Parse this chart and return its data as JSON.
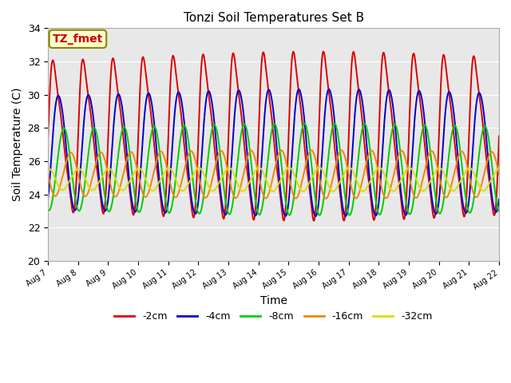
{
  "title": "Tonzi Soil Temperatures Set B",
  "xlabel": "Time",
  "ylabel": "Soil Temperature (C)",
  "ylim": [
    20,
    34
  ],
  "background_color": "#ffffff",
  "plot_bg_color": "#e8e8e8",
  "series": [
    {
      "label": "-2cm",
      "color": "#dd0000",
      "amplitude": 5.5,
      "mean": 27.5,
      "phase_shift": 0.0,
      "sharpness": 3.0
    },
    {
      "label": "-4cm",
      "color": "#0000cc",
      "amplitude": 3.7,
      "mean": 26.5,
      "phase_shift": 0.12,
      "sharpness": 1.5
    },
    {
      "label": "-8cm",
      "color": "#00cc00",
      "amplitude": 2.4,
      "mean": 25.5,
      "phase_shift": 0.28,
      "sharpness": 1.0
    },
    {
      "label": "-16cm",
      "color": "#ee8800",
      "amplitude": 1.2,
      "mean": 25.2,
      "phase_shift": 0.5,
      "sharpness": 0.8
    },
    {
      "label": "-32cm",
      "color": "#dddd00",
      "amplitude": 0.55,
      "mean": 24.9,
      "phase_shift": 0.75,
      "sharpness": 0.5
    }
  ],
  "xtick_labels": [
    "Aug 7",
    "Aug 8",
    "Aug 9",
    "Aug 10",
    "Aug 11",
    "Aug 12",
    "Aug 13",
    "Aug 14",
    "Aug 15",
    "Aug 16",
    "Aug 17",
    "Aug 18",
    "Aug 19",
    "Aug 20",
    "Aug 21",
    "Aug 22"
  ],
  "annotation_text": "TZ_fmet",
  "grid_color": "#ffffff",
  "linewidth": 1.4
}
